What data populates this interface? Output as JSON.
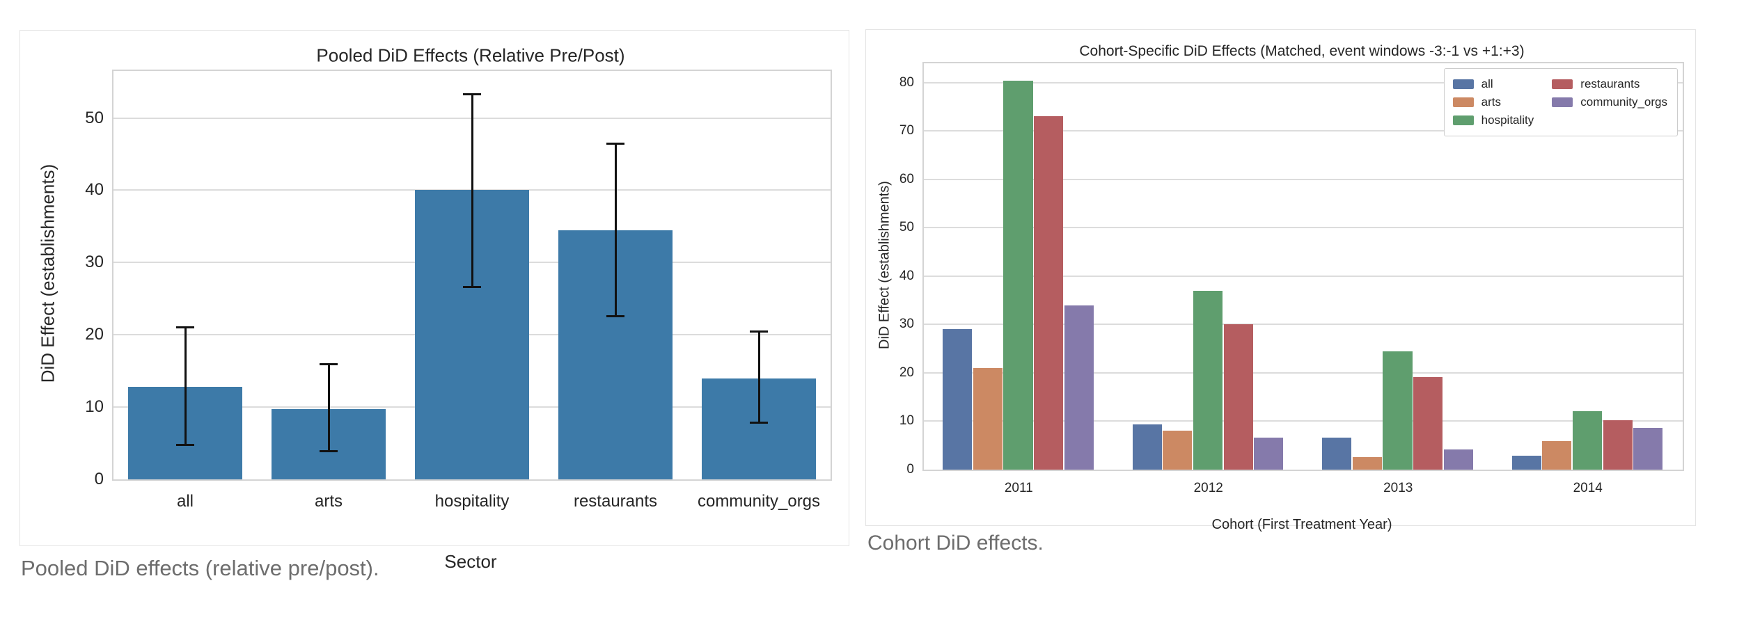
{
  "page": {
    "background": "#ffffff"
  },
  "figure1": {
    "caption": "Pooled DiD effects (relative pre/post)."
  },
  "figure2": {
    "caption": "Cohort DiD effects."
  },
  "chart_data": [
    {
      "type": "bar",
      "title": "Pooled DiD Effects (Relative Pre/Post)",
      "xlabel": "Sector",
      "ylabel": "DiD Effect (establishments)",
      "categories": [
        "all",
        "arts",
        "hospitality",
        "restaurants",
        "community_orgs"
      ],
      "values": [
        12.8,
        9.7,
        40.0,
        34.5,
        14.0
      ],
      "error_low": [
        4.8,
        3.9,
        26.6,
        22.6,
        7.8
      ],
      "error_high": [
        21.0,
        15.9,
        53.3,
        46.4,
        20.5
      ],
      "bar_color": "#3d7aa8",
      "error_color": "#111111",
      "grid_color": "#dcdcdc",
      "ylim": [
        0,
        56.5
      ],
      "yticks": [
        0,
        10,
        20,
        30,
        40,
        50
      ],
      "grid": true,
      "legend": null
    },
    {
      "type": "bar",
      "title": "Cohort-Specific DiD Effects (Matched, event windows -3:-1 vs +1:+3)",
      "xlabel": "Cohort (First Treatment Year)",
      "ylabel": "DiD Effect (establishments)",
      "categories": [
        "2011",
        "2012",
        "2013",
        "2014"
      ],
      "series": [
        {
          "name": "all",
          "color": "#5875a4",
          "values": [
            29.0,
            9.3,
            6.6,
            2.9
          ]
        },
        {
          "name": "arts",
          "color": "#cc8963",
          "values": [
            21.0,
            8.1,
            2.6,
            5.9
          ]
        },
        {
          "name": "hospitality",
          "color": "#5f9e6e",
          "values": [
            80.4,
            36.9,
            24.4,
            12.1
          ]
        },
        {
          "name": "restaurants",
          "color": "#b55d60",
          "values": [
            73.0,
            30.1,
            19.1,
            10.2
          ]
        },
        {
          "name": "community_orgs",
          "color": "#857aab",
          "values": [
            34.0,
            6.6,
            4.2,
            8.7
          ]
        }
      ],
      "grid_color": "#dcdcdc",
      "ylim": [
        0,
        84
      ],
      "yticks": [
        0,
        10,
        20,
        30,
        40,
        50,
        60,
        70,
        80
      ],
      "grid": true,
      "legend_position": "upper right",
      "legend_columns": [
        [
          "all",
          "arts",
          "hospitality"
        ],
        [
          "restaurants",
          "community_orgs"
        ]
      ]
    }
  ]
}
